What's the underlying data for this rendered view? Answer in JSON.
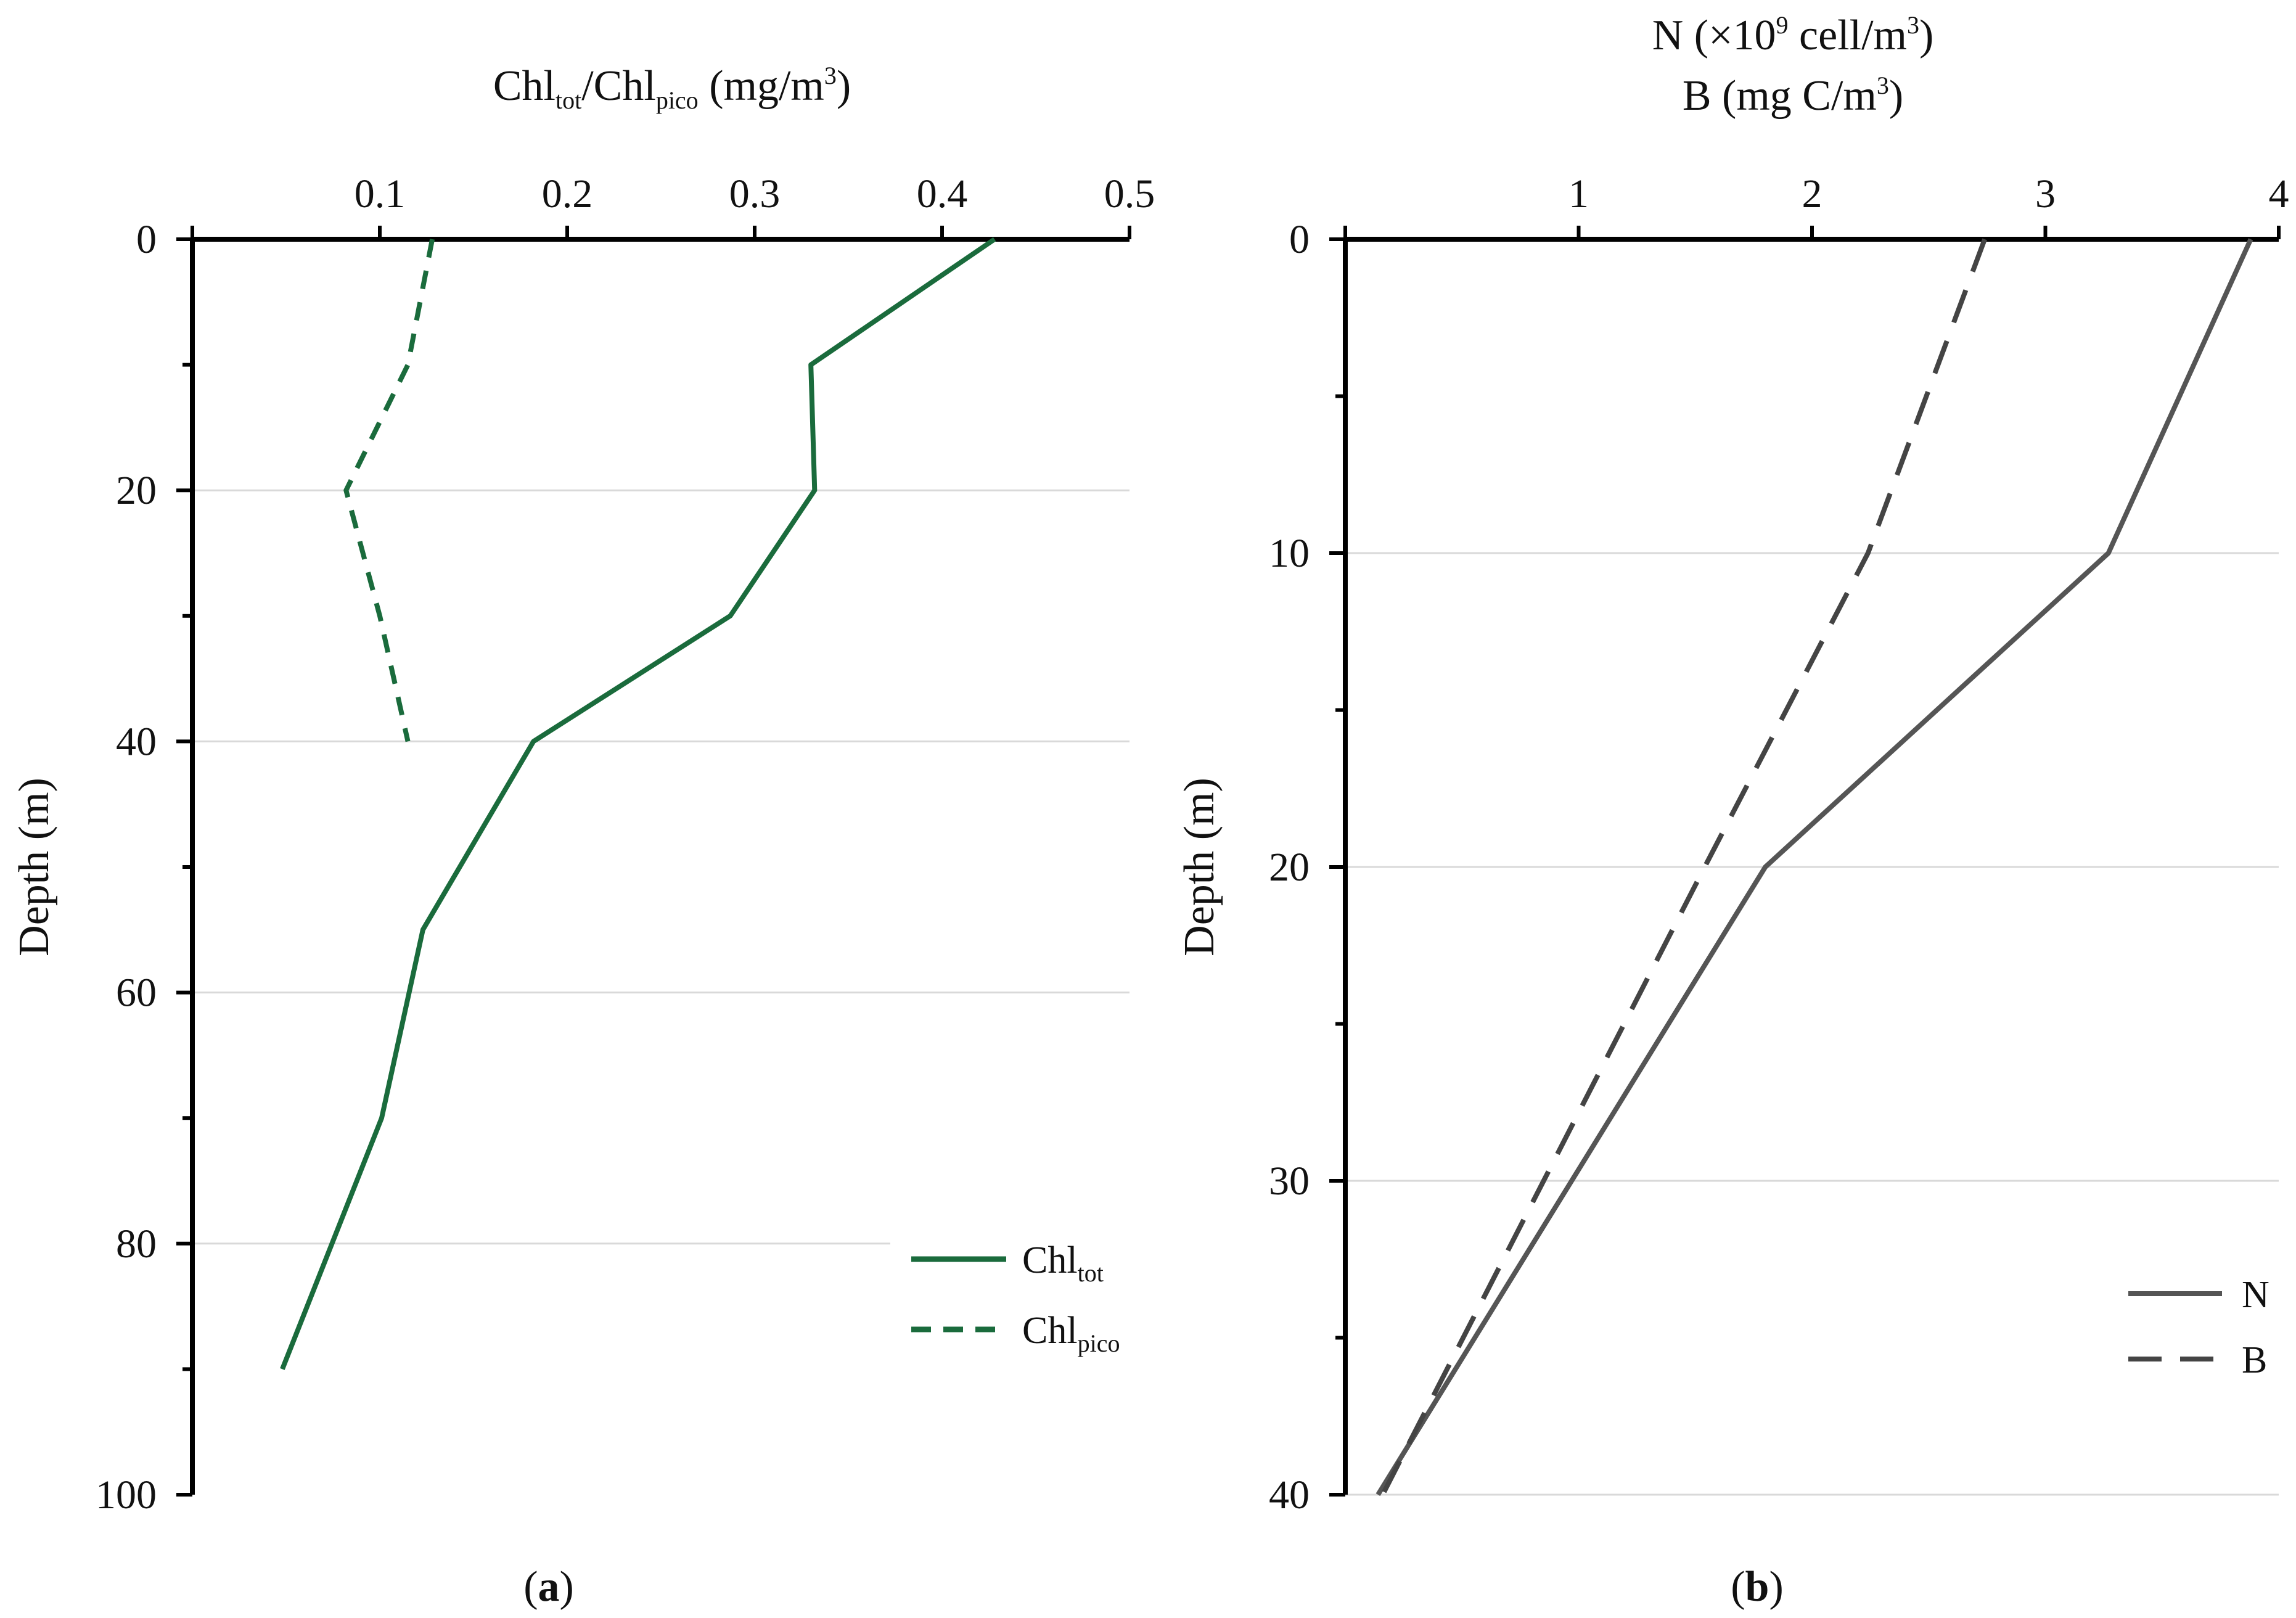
{
  "chart_data": [
    {
      "id": "a",
      "type": "line",
      "panel_label": "a",
      "xlabel": {
        "main1": "Chl",
        "sub1": "tot",
        "sep": "/Chl",
        "sub2": "pico",
        "units": " (mg/m",
        "sup": "3",
        "close": ")"
      },
      "ylabel": "Depth (m)",
      "xlim": [
        0,
        0.5
      ],
      "ylim": [
        0,
        100
      ],
      "y_inverted": true,
      "x_axis_position": "top",
      "x_ticks": [
        0.1,
        0.2,
        0.3,
        0.4,
        0.5
      ],
      "x_tick_labels": [
        "0.1",
        "0.2",
        "0.3",
        "0.4",
        "0.5"
      ],
      "y_ticks": [
        0,
        20,
        40,
        60,
        80,
        100
      ],
      "y_tick_labels": [
        "0",
        "20",
        "40",
        "60",
        "80",
        "100"
      ],
      "y_minor_ticks": [
        10,
        30,
        50,
        70,
        90
      ],
      "grid_y": [
        20,
        40,
        60,
        80
      ],
      "legend_position": "bottom-right",
      "series": [
        {
          "name": "Chl",
          "name_sub": "tot",
          "style": "solid",
          "color": "#1a6b3c",
          "depth": [
            0,
            10,
            20,
            30,
            40,
            55,
            70,
            90
          ],
          "values": [
            0.428,
            0.33,
            0.332,
            0.287,
            0.182,
            0.123,
            0.101,
            0.048
          ]
        },
        {
          "name": "Chl",
          "name_sub": "pico",
          "style": "dashed",
          "color": "#1a6b3c",
          "depth": [
            0,
            10,
            20,
            30,
            40
          ],
          "values": [
            0.128,
            0.115,
            0.082,
            0.1,
            0.115
          ]
        }
      ]
    },
    {
      "id": "b",
      "type": "line",
      "panel_label": "b",
      "xlabel_line1": {
        "text": "N (×10",
        "sup": "9",
        "rest": " cell/m",
        "sup2": "3",
        "close": ")"
      },
      "xlabel_line2": {
        "text": "B (mg C/m",
        "sup": "3",
        "close": ")"
      },
      "ylabel": "Depth (m)",
      "xlim": [
        0,
        4
      ],
      "ylim": [
        0,
        40
      ],
      "y_inverted": true,
      "x_axis_position": "top",
      "x_ticks": [
        1,
        2,
        3,
        4
      ],
      "x_tick_labels": [
        "1",
        "2",
        "3",
        "4"
      ],
      "y_ticks": [
        0,
        10,
        20,
        30,
        40
      ],
      "y_tick_labels": [
        "0",
        "10",
        "20",
        "30",
        "40"
      ],
      "y_minor_ticks": [
        5,
        15,
        25,
        35
      ],
      "grid_y": [
        10,
        20,
        30,
        40
      ],
      "legend_position": "bottom-right",
      "series": [
        {
          "name": "N",
          "style": "solid",
          "color": "#555555",
          "depth": [
            0,
            10,
            20,
            40
          ],
          "values": [
            3.88,
            3.27,
            1.8,
            0.14
          ]
        },
        {
          "name": "B",
          "style": "dashed",
          "color": "#444444",
          "depth": [
            0,
            10,
            20,
            30,
            40
          ],
          "values": [
            2.74,
            2.24,
            1.54,
            0.85,
            0.16
          ]
        }
      ]
    }
  ]
}
